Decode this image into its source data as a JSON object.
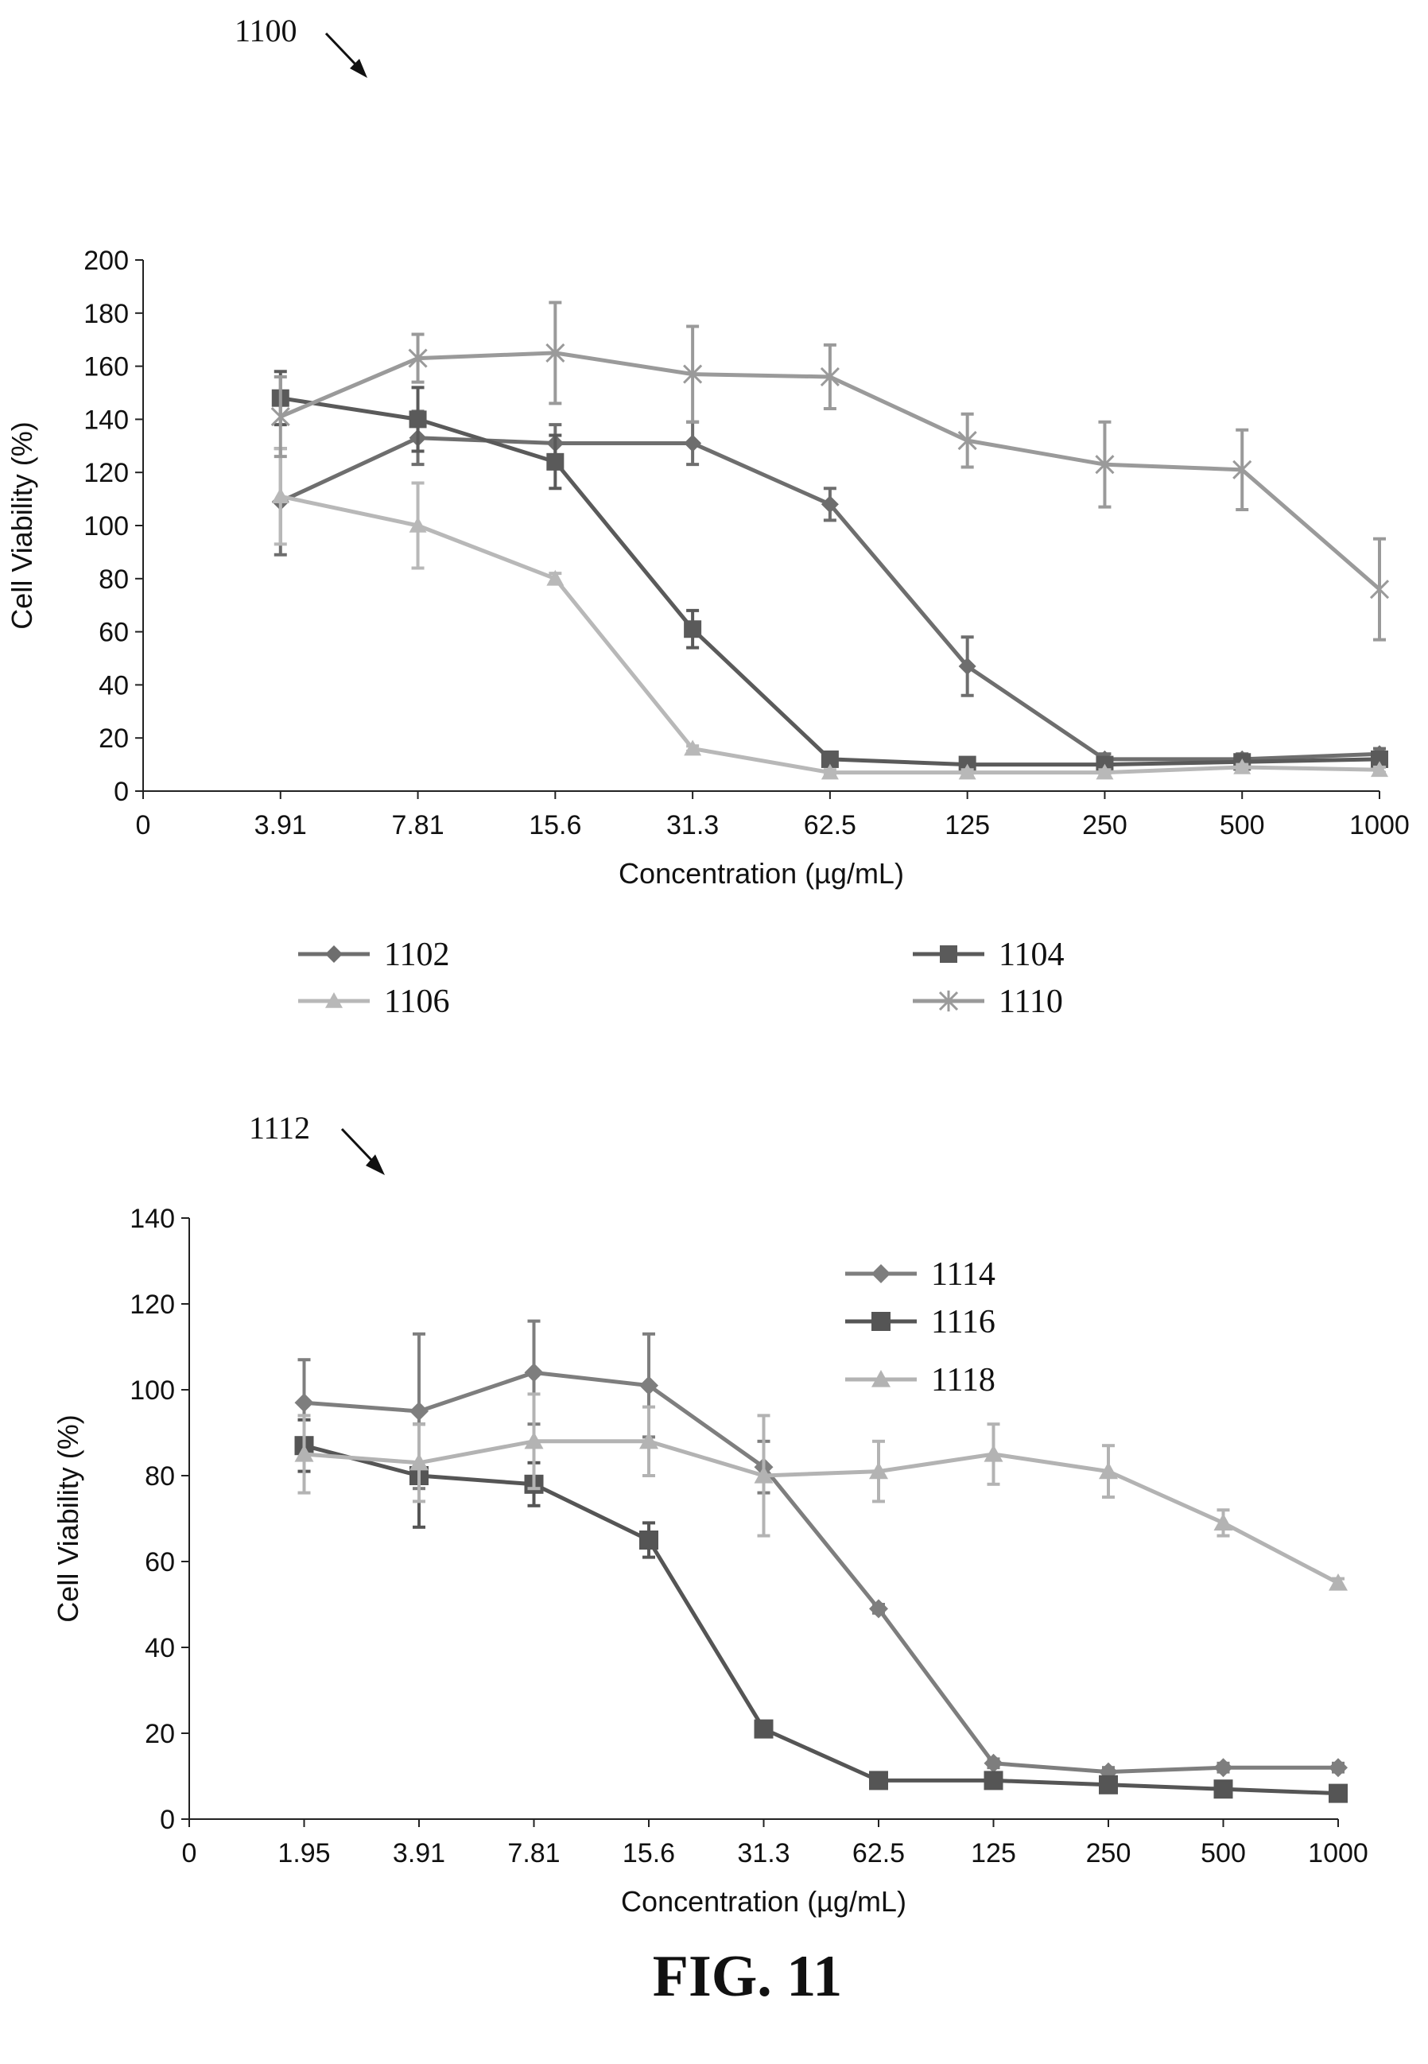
{
  "figure_caption": "FIG. 11",
  "chart_data": [
    {
      "type": "line",
      "ref_label": "1100",
      "xlabel": "Concentration (µg/mL)",
      "ylabel": "Cell Viability (%)",
      "categories": [
        "0",
        "3.91",
        "7.81",
        "15.6",
        "31.3",
        "62.5",
        "125",
        "250",
        "500",
        "1000"
      ],
      "ylim": [
        0,
        200
      ],
      "yticks": [
        "0",
        "20",
        "40",
        "60",
        "80",
        "100",
        "120",
        "140",
        "160",
        "180",
        "200"
      ],
      "legend_placement": "bottom",
      "grid": false,
      "series": [
        {
          "name": "1102",
          "marker": "diamond",
          "color": "#6e6e6e",
          "values": [
            null,
            109,
            133,
            131,
            131,
            108,
            47,
            12,
            12,
            14
          ],
          "errors": [
            null,
            20,
            10,
            7,
            8,
            6,
            11,
            2,
            2,
            2
          ]
        },
        {
          "name": "1104",
          "marker": "square",
          "color": "#5a5a5a",
          "values": [
            null,
            148,
            140,
            124,
            61,
            12,
            10,
            10,
            11,
            12
          ],
          "errors": [
            null,
            10,
            12,
            10,
            7,
            2,
            2,
            2,
            2,
            2
          ]
        },
        {
          "name": "1106",
          "marker": "triangle",
          "color": "#b8b8b8",
          "values": [
            null,
            111,
            100,
            80,
            16,
            7,
            7,
            7,
            9,
            8
          ],
          "errors": [
            null,
            18,
            16,
            2,
            1,
            1,
            1,
            1,
            1,
            1
          ]
        },
        {
          "name": "1110",
          "marker": "star",
          "color": "#9a9a9a",
          "values": [
            null,
            141,
            163,
            165,
            157,
            156,
            132,
            123,
            121,
            76
          ],
          "errors": [
            null,
            15,
            9,
            19,
            18,
            12,
            10,
            16,
            15,
            19
          ]
        }
      ]
    },
    {
      "type": "line",
      "ref_label": "1112",
      "xlabel": "Concentration (µg/mL)",
      "ylabel": "Cell Viability (%)",
      "categories": [
        "0",
        "1.95",
        "3.91",
        "7.81",
        "15.6",
        "31.3",
        "62.5",
        "125",
        "250",
        "500",
        "1000"
      ],
      "ylim": [
        0,
        140
      ],
      "yticks": [
        "0",
        "20",
        "40",
        "60",
        "80",
        "100",
        "120",
        "140"
      ],
      "legend_placement": "top-right",
      "grid": false,
      "series": [
        {
          "name": "1114",
          "marker": "diamond",
          "color": "#7e7e7e",
          "values": [
            null,
            97,
            95,
            104,
            101,
            82,
            49,
            13,
            11,
            12,
            12
          ],
          "errors": [
            null,
            10,
            18,
            12,
            12,
            6,
            1,
            1,
            1,
            1,
            1
          ]
        },
        {
          "name": "1116",
          "marker": "square",
          "color": "#555555",
          "values": [
            null,
            87,
            80,
            78,
            65,
            21,
            9,
            9,
            8,
            7,
            6
          ],
          "errors": [
            null,
            6,
            12,
            5,
            4,
            1,
            1,
            1,
            1,
            1,
            1
          ]
        },
        {
          "name": "1118",
          "marker": "triangle",
          "color": "#b3b3b3",
          "values": [
            null,
            85,
            83,
            88,
            88,
            80,
            81,
            85,
            81,
            69,
            55
          ],
          "errors": [
            null,
            9,
            9,
            11,
            8,
            14,
            7,
            7,
            6,
            3,
            1
          ]
        }
      ]
    }
  ]
}
